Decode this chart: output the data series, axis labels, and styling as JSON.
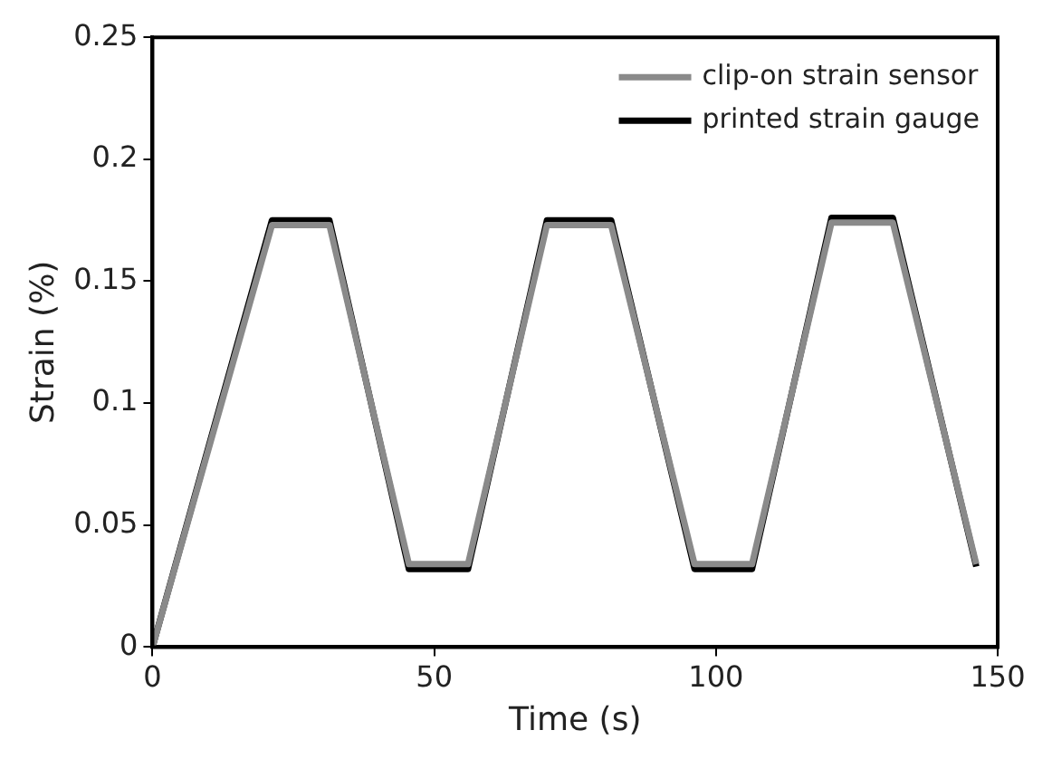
{
  "chart_data": {
    "type": "line",
    "xlabel": "Time (s)",
    "ylabel": "Strain (%)",
    "xlim": [
      0,
      150
    ],
    "xticks": [
      0,
      50,
      100,
      150
    ],
    "ylim": [
      0,
      0.25
    ],
    "yticks": [
      0,
      0.05,
      0.1,
      0.15,
      0.2,
      0.25
    ],
    "grid": false,
    "legend": "top right",
    "marker": "none",
    "line_style": "solid",
    "series": [
      {
        "name": "clip-on strain sensor",
        "color": "#8a8a8a",
        "x": [
          0,
          21.2,
          31.4,
          45.5,
          56,
          70,
          81.4,
          96.2,
          106.4,
          120.5,
          131.4,
          146.2
        ],
        "values": [
          0,
          0.173,
          0.173,
          0.034,
          0.034,
          0.173,
          0.173,
          0.034,
          0.034,
          0.174,
          0.174,
          0.034
        ]
      },
      {
        "name": "printed strain gauge",
        "color": "#000000",
        "x": [
          0,
          21.2,
          31.4,
          45.5,
          56,
          70,
          81.4,
          96.2,
          106.4,
          120.5,
          131.4,
          146.2
        ],
        "values": [
          0,
          0.175,
          0.175,
          0.032,
          0.032,
          0.175,
          0.175,
          0.032,
          0.032,
          0.176,
          0.176,
          0.033
        ]
      }
    ]
  }
}
